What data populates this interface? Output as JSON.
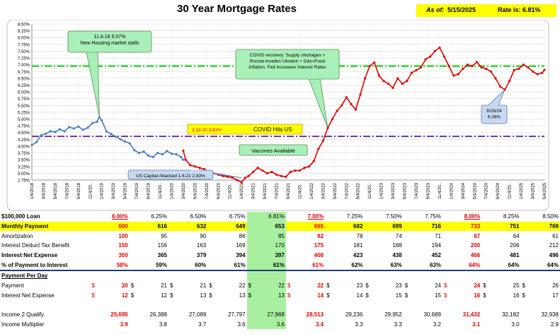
{
  "header": {
    "title": "30 Year Mortgage Rates",
    "as_of_label": "As of:",
    "as_of_date": "5/15/2025",
    "rate_label": "Rate is: 6.81%"
  },
  "chart_data": {
    "type": "line",
    "title": "30 Year Mortgage Rates",
    "ylim": [
      2.75,
      8.5
    ],
    "yticks": [
      "2.75%",
      "3.00%",
      "3.25%",
      "3.50%",
      "3.75%",
      "4.00%",
      "4.25%",
      "4.50%",
      "4.75%",
      "5.00%",
      "5.25%",
      "5.50%",
      "5.75%",
      "6.00%",
      "6.25%",
      "6.50%",
      "6.75%",
      "7.00%",
      "7.25%",
      "7.50%",
      "7.75%",
      "8.00%",
      "8.25%",
      "8.50%"
    ],
    "xticks": [
      "1/4/2018",
      "3/4/2018",
      "5/4/2018",
      "7/4/2018",
      "9/4/2018",
      "11/4/20..",
      "1/4/2019",
      "3/4/2019",
      "5/4/2019",
      "7/4/2019",
      "9/4/2019",
      "11/4/20..",
      "1/4/2020",
      "3/4/2020",
      "5/4/2020",
      "7/4/2020",
      "9/4/2020",
      "11/4/20..",
      "1/4/2021",
      "3/4/2021",
      "5/4/2021",
      "7/4/2021",
      "9/4/2021",
      "11/4/20..",
      "1/4/2022",
      "3/4/2022",
      "5/4/2022",
      "7/4/2022",
      "9/4/2022",
      "11/4/20..",
      "1/4/2023",
      "3/4/2023",
      "5/4/2023",
      "7/4/2023",
      "9/4/2023",
      "11/4/20..",
      "1/4/2024",
      "3/4/2024",
      "5/4/2024",
      "7/4/2024",
      "9/4/2024",
      "11/4/20..",
      "1/4/2025",
      "3/4/2025",
      "5/4/2025"
    ],
    "grid": true,
    "series": [
      {
        "color": "#4a7ebf",
        "points": [
          [
            0,
            4.04
          ],
          [
            0.4,
            4.15
          ],
          [
            0.8,
            4.4
          ],
          [
            1.2,
            4.46
          ],
          [
            1.6,
            4.55
          ],
          [
            2,
            4.52
          ],
          [
            2.4,
            4.62
          ],
          [
            2.8,
            4.55
          ],
          [
            3.2,
            4.7
          ],
          [
            3.6,
            4.65
          ],
          [
            4,
            4.72
          ],
          [
            4.4,
            4.6
          ],
          [
            4.8,
            4.68
          ],
          [
            5.2,
            4.85
          ],
          [
            5.6,
            4.9
          ],
          [
            5.8,
            5.07
          ],
          [
            6,
            4.95
          ],
          [
            6.4,
            4.55
          ],
          [
            6.8,
            4.45
          ],
          [
            7.2,
            4.35
          ],
          [
            7.6,
            4.25
          ],
          [
            8,
            4.17
          ],
          [
            8.4,
            4.1
          ],
          [
            8.8,
            3.85
          ],
          [
            9.2,
            3.75
          ],
          [
            9.6,
            3.8
          ],
          [
            10,
            3.65
          ],
          [
            10.4,
            3.6
          ],
          [
            10.8,
            3.75
          ],
          [
            11.2,
            3.7
          ],
          [
            11.6,
            3.82
          ],
          [
            12,
            3.72
          ],
          [
            12.4,
            3.7
          ],
          [
            12.8,
            3.6
          ],
          [
            13,
            3.5
          ]
        ]
      },
      {
        "color": "#e00000",
        "points": [
          [
            13,
            3.83
          ],
          [
            13.2,
            3.5
          ],
          [
            13.6,
            3.3
          ],
          [
            14,
            3.25
          ],
          [
            14.4,
            3.2
          ],
          [
            14.8,
            3.15
          ],
          [
            15.2,
            3.05
          ],
          [
            15.6,
            3.0
          ],
          [
            16,
            2.95
          ],
          [
            16.4,
            2.9
          ],
          [
            16.8,
            2.87
          ],
          [
            17.2,
            2.84
          ],
          [
            17.6,
            2.75
          ],
          [
            18,
            2.67
          ],
          [
            18.3,
            2.83
          ],
          [
            18.6,
            2.9
          ],
          [
            19,
            3.05
          ],
          [
            19.4,
            3.2
          ],
          [
            19.8,
            3.1
          ],
          [
            20.2,
            3.0
          ],
          [
            20.6,
            3.05
          ],
          [
            21,
            2.95
          ],
          [
            21.4,
            2.9
          ],
          [
            21.8,
            2.87
          ],
          [
            22.2,
            3.05
          ],
          [
            22.6,
            3.1
          ],
          [
            23,
            3.1
          ],
          [
            23.4,
            3.2
          ],
          [
            23.8,
            3.25
          ],
          [
            24.2,
            3.45
          ],
          [
            24.6,
            3.9
          ],
          [
            25,
            4.2
          ],
          [
            25.4,
            4.67
          ],
          [
            25.8,
            5.0
          ],
          [
            26.2,
            5.3
          ],
          [
            26.6,
            5.5
          ],
          [
            27,
            5.8
          ],
          [
            27.4,
            5.55
          ],
          [
            27.8,
            5.35
          ],
          [
            28.2,
            5.9
          ],
          [
            28.6,
            6.5
          ],
          [
            29,
            6.95
          ],
          [
            29.4,
            7.08
          ],
          [
            29.8,
            6.6
          ],
          [
            30.2,
            6.4
          ],
          [
            30.6,
            6.3
          ],
          [
            31,
            6.15
          ],
          [
            31.4,
            6.5
          ],
          [
            31.8,
            6.3
          ],
          [
            32.2,
            6.4
          ],
          [
            32.6,
            6.7
          ],
          [
            33,
            6.8
          ],
          [
            33.4,
            6.9
          ],
          [
            33.8,
            7.2
          ],
          [
            34.2,
            7.3
          ],
          [
            34.6,
            7.5
          ],
          [
            35,
            7.63
          ],
          [
            35.4,
            7.3
          ],
          [
            35.8,
            6.95
          ],
          [
            36.2,
            6.6
          ],
          [
            36.6,
            6.65
          ],
          [
            37,
            6.85
          ],
          [
            37.4,
            7.0
          ],
          [
            37.8,
            6.95
          ],
          [
            38.2,
            7.1
          ],
          [
            38.6,
            6.9
          ],
          [
            39,
            6.85
          ],
          [
            39.4,
            6.75
          ],
          [
            39.8,
            6.5
          ],
          [
            40.2,
            6.2
          ],
          [
            40.6,
            6.08
          ],
          [
            41,
            6.4
          ],
          [
            41.4,
            6.8
          ],
          [
            41.8,
            6.85
          ],
          [
            42.2,
            7.0
          ],
          [
            42.6,
            6.9
          ],
          [
            43,
            6.75
          ],
          [
            43.4,
            6.65
          ],
          [
            43.8,
            6.7
          ],
          [
            44,
            6.81
          ]
        ]
      }
    ],
    "ref_lines": [
      {
        "y": 6.95,
        "color": "#00cc00",
        "style": "dashdot"
      },
      {
        "y": 4.36,
        "color": "#7030a0",
        "style": "dashdot"
      }
    ],
    "annotations": {
      "peak_2018": "11.8.18 5.07%\nNew Housing market stalls",
      "covid_recovery": "COVID recovery: Supply shortages +\nRussia invades Ukraine = Gas+Food\ninflation. Fed increases Interest Rates",
      "covid_date": "3.19.20  3.83%",
      "covid_text": "COVID Hits US",
      "vaccines": "Vaccines Available",
      "capitol": "US Capital Attacked 1.6.21 2.83%",
      "low_2024": "9/26/24\n6.08%"
    }
  },
  "table": {
    "loan_label": "$100,000 Loan",
    "rates": [
      "6.00%",
      "6.25%",
      "6.50%",
      "6.75%",
      "6.81%",
      "7.00%",
      "7.25%",
      "7.50%",
      "7.75%",
      "8.00%",
      "8.25%",
      "8.50%"
    ],
    "rows": [
      {
        "label": "Monthly Payment",
        "values": [
          "600",
          "616",
          "632",
          "649",
          "653",
          "665",
          "682",
          "699",
          "716",
          "733",
          "751",
          "769"
        ]
      },
      {
        "label": "Amortization",
        "values": [
          "100",
          "95",
          "90",
          "86",
          "85",
          "82",
          "78",
          "74",
          "71",
          "67",
          "64",
          "61"
        ]
      },
      {
        "label": "Interest Deduct Tax Benefit",
        "values": [
          "150",
          "156",
          "163",
          "169",
          "170",
          "175",
          "181",
          "188",
          "194",
          "200",
          "206",
          "212"
        ]
      },
      {
        "label": "Interest Net Expense",
        "values": [
          "350",
          "365",
          "379",
          "394",
          "397",
          "408",
          "423",
          "438",
          "452",
          "466",
          "481",
          "496"
        ]
      },
      {
        "label": "% of Payment to Interest",
        "values": [
          "58%",
          "59%",
          "60%",
          "61%",
          "61%",
          "61%",
          "62%",
          "63%",
          "63%",
          "64%",
          "64%",
          "64%"
        ]
      }
    ],
    "per_day_label": "Payment Per Day",
    "per_day_rows": [
      {
        "label": "Payment",
        "values": [
          "20",
          "21",
          "21",
          "22",
          "22",
          "22",
          "23",
          "23",
          "24",
          "24",
          "25",
          "26"
        ]
      },
      {
        "label": "Interest Net Expense",
        "values": [
          "12",
          "12",
          "13",
          "13",
          "13",
          "14",
          "14",
          "15",
          "15",
          "16",
          "16",
          "17"
        ]
      }
    ],
    "income_rows": [
      {
        "label": "Income 2 Qualify",
        "values": [
          "25,695",
          "26,388",
          "27,089",
          "27,797",
          "27,968",
          "28,513",
          "29,236",
          "29,952",
          "30,689",
          "31,432",
          "32,182",
          "32,938"
        ]
      },
      {
        "label": "Income Multiplier",
        "values": [
          "3.9",
          "3.8",
          "3.7",
          "3.6",
          "3.6",
          "3.4",
          "3.3",
          "3.3",
          "3.2",
          "3.1",
          "3.0",
          "2.9"
        ]
      }
    ],
    "dollar": "$",
    "red_columns": [
      0,
      5,
      9
    ],
    "highlight_column": 4
  }
}
